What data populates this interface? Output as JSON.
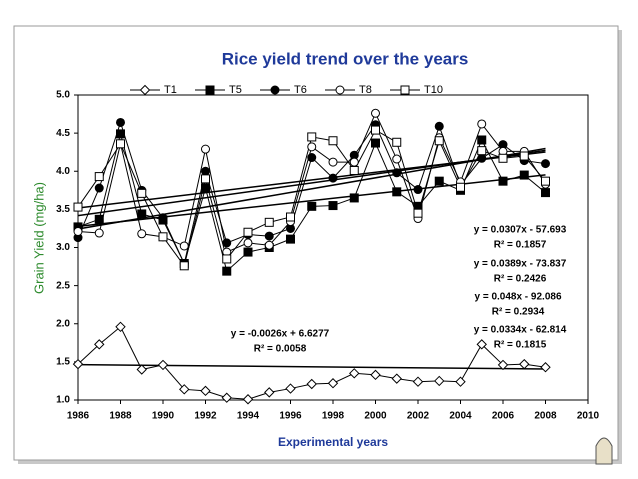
{
  "chart_data": {
    "type": "line",
    "title": "Rice yield trend over the years",
    "xlabel": "Experimental years",
    "ylabel": "Grain Yield (mg/ha)",
    "x": [
      1986,
      1987,
      1988,
      1989,
      1990,
      1991,
      1992,
      1993,
      1994,
      1995,
      1996,
      1997,
      1998,
      1999,
      2000,
      2001,
      2002,
      2003,
      2004,
      2005,
      2006,
      2007,
      2008
    ],
    "xlim": [
      1986,
      2010
    ],
    "xticks": [
      1986,
      1988,
      1990,
      1992,
      1994,
      1996,
      1998,
      2000,
      2002,
      2004,
      2006,
      2008,
      2010
    ],
    "ylim": [
      1,
      5
    ],
    "yticks": [
      {
        "value": 1,
        "label": "1.0"
      },
      {
        "value": 1.5,
        "label": "1.5"
      },
      {
        "value": 2,
        "label": "2.0"
      },
      {
        "value": 2.5,
        "label": "2.5"
      },
      {
        "value": 3,
        "label": "3.0"
      },
      {
        "value": 3.5,
        "label": "3.5"
      },
      {
        "value": 4,
        "label": "4.0"
      },
      {
        "value": 4.5,
        "label": "4.5"
      },
      {
        "value": 5,
        "label": "5.0"
      }
    ],
    "series": [
      {
        "name": "T1",
        "color": "#000000",
        "marker": "diamond-open",
        "values": [
          1.47,
          1.73,
          1.96,
          1.4,
          1.46,
          1.14,
          1.12,
          1.03,
          1.01,
          1.1,
          1.15,
          1.21,
          1.22,
          1.35,
          1.33,
          1.28,
          1.24,
          1.25,
          1.24,
          1.73,
          1.46,
          1.47,
          1.43
        ]
      },
      {
        "name": "T5",
        "color": "#000000",
        "marker": "square-filled",
        "values": [
          3.27,
          3.37,
          4.49,
          3.44,
          3.36,
          2.79,
          3.78,
          2.69,
          2.94,
          3.0,
          3.11,
          3.54,
          3.55,
          3.65,
          4.37,
          3.73,
          3.54,
          3.87,
          3.75,
          4.41,
          3.87,
          3.95,
          3.72
        ]
      },
      {
        "name": "T6",
        "color": "#000000",
        "marker": "circle-filled",
        "values": [
          3.13,
          3.78,
          4.64,
          3.75,
          3.39,
          2.79,
          4.0,
          3.06,
          3.17,
          3.15,
          3.25,
          4.18,
          3.91,
          4.21,
          4.61,
          3.98,
          3.76,
          4.59,
          3.82,
          4.17,
          4.35,
          4.14,
          4.1
        ]
      },
      {
        "name": "T8",
        "color": "#000000",
        "marker": "circle-open",
        "values": [
          3.21,
          3.19,
          4.36,
          3.18,
          3.14,
          3.02,
          4.29,
          2.94,
          3.06,
          3.03,
          3.34,
          4.32,
          4.12,
          4.12,
          4.76,
          4.16,
          3.38,
          4.44,
          3.86,
          4.62,
          4.26,
          4.26,
          3.83
        ]
      },
      {
        "name": "T10",
        "color": "#000000",
        "marker": "square-open",
        "values": [
          3.53,
          3.93,
          4.36,
          3.71,
          3.14,
          2.76,
          3.9,
          2.85,
          3.2,
          3.33,
          3.4,
          4.45,
          4.4,
          4.01,
          4.54,
          4.38,
          3.45,
          4.4,
          3.79,
          4.27,
          4.17,
          4.2,
          3.87
        ]
      }
    ],
    "trendlines": [
      {
        "equation": "y = 0.0307x - 57.693",
        "r2": "R² = 0.1857",
        "slope": 0.0307,
        "intercept": -57.693
      },
      {
        "equation": "y = 0.0389x - 73.837",
        "r2": "R² = 0.2426",
        "slope": 0.0389,
        "intercept": -73.837
      },
      {
        "equation": "y = 0.048x - 92.086",
        "r2": "R² = 0.2934",
        "slope": 0.048,
        "intercept": -92.086
      },
      {
        "equation": "y = 0.0334x - 62.814",
        "r2": "R² = 0.1815",
        "slope": 0.0334,
        "intercept": -62.814
      },
      {
        "equation": "y = -0.0026x + 6.6277",
        "r2": "R² = 0.0058",
        "slope": -0.0026,
        "intercept": 6.6277
      }
    ],
    "legend": "top",
    "grid": false
  }
}
